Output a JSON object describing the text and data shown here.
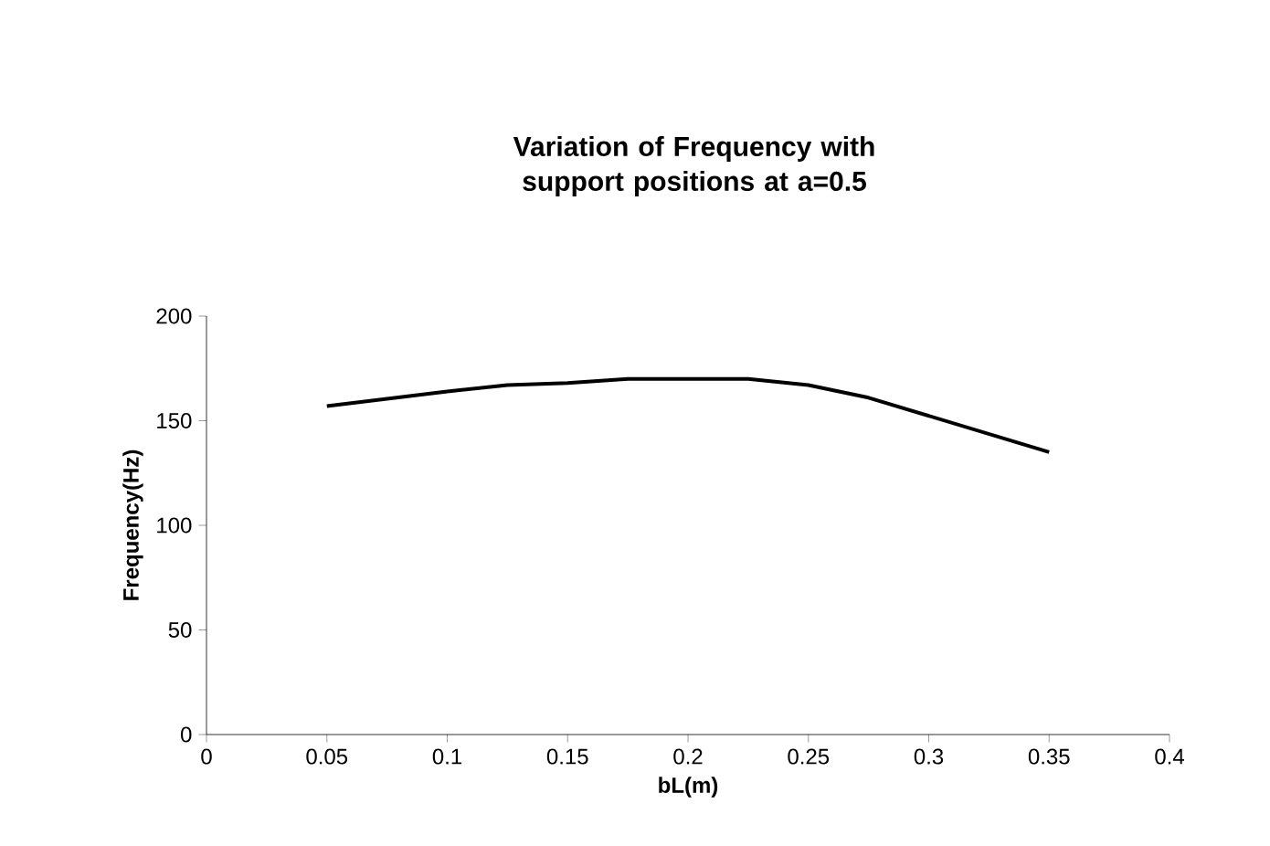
{
  "chart_data": {
    "type": "line",
    "title": "Variation of Frequency with support positions at a=0.5",
    "xlabel": "bL(m)",
    "ylabel": "Frequency(Hz)",
    "x": [
      0.05,
      0.1,
      0.125,
      0.15,
      0.175,
      0.2,
      0.225,
      0.25,
      0.275,
      0.35
    ],
    "series": [
      {
        "color": "#000000",
        "values": [
          157,
          164,
          167,
          168,
          170,
          170,
          170,
          167,
          161,
          135
        ]
      }
    ],
    "xlim": [
      0,
      0.4
    ],
    "xticks": [
      0,
      0.05,
      0.1,
      0.15,
      0.2,
      0.25,
      0.3,
      0.35,
      0.4
    ],
    "ylim": [
      0,
      200
    ],
    "yticks": [
      0,
      50,
      100,
      150,
      200
    ],
    "grid": false,
    "marker": "none",
    "line_style": "solid"
  }
}
